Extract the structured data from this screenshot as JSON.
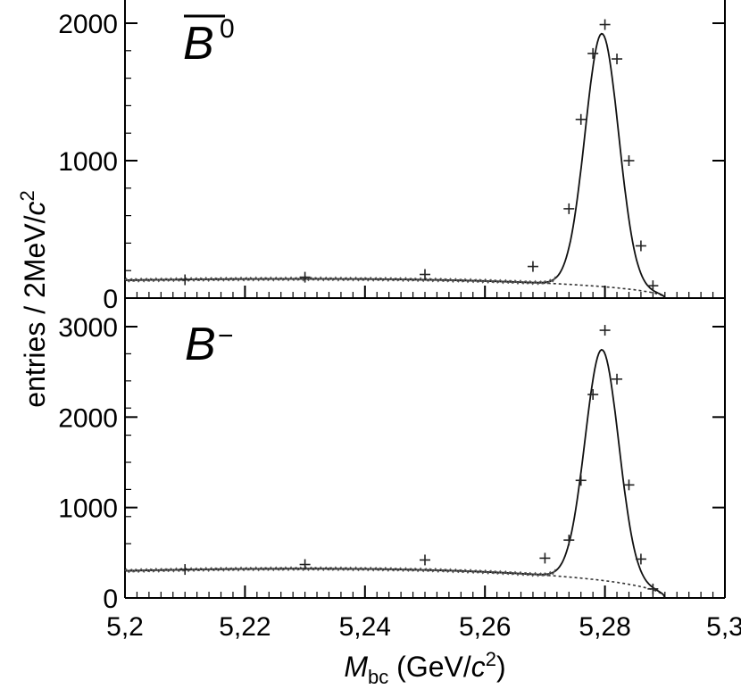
{
  "chart_data": [
    {
      "type": "line",
      "panel_label": "B",
      "panel_label_overline": true,
      "panel_label_sup": "0",
      "x_range": [
        5.2,
        5.3
      ],
      "ylim": [
        0,
        2000
      ],
      "ytick_labels": [
        "0",
        "1000",
        "2000"
      ],
      "ytick_values": [
        0,
        1000,
        2000
      ],
      "background": {
        "a": 130,
        "b": 185,
        "c": 40
      },
      "signal": {
        "peak": 5.2795,
        "height": 1840,
        "sigma": 0.0028
      },
      "points": [
        {
          "x": 5.21,
          "y": 133
        },
        {
          "x": 5.23,
          "y": 152
        },
        {
          "x": 5.25,
          "y": 172
        },
        {
          "x": 5.268,
          "y": 230
        },
        {
          "x": 5.274,
          "y": 650
        },
        {
          "x": 5.276,
          "y": 1300
        },
        {
          "x": 5.278,
          "y": 1780
        },
        {
          "x": 5.28,
          "y": 1990
        },
        {
          "x": 5.282,
          "y": 1740
        },
        {
          "x": 5.284,
          "y": 1000
        },
        {
          "x": 5.286,
          "y": 380
        },
        {
          "x": 5.288,
          "y": 90
        }
      ]
    },
    {
      "type": "line",
      "panel_label": "B",
      "panel_label_overline": false,
      "panel_label_sup": "−",
      "x_range": [
        5.2,
        5.3
      ],
      "ylim": [
        0,
        3000
      ],
      "ytick_labels": [
        "0",
        "1000",
        "2000",
        "3000"
      ],
      "ytick_values": [
        0,
        1000,
        2000,
        3000
      ],
      "background": {
        "a": 300,
        "b": 430,
        "c": 40
      },
      "signal": {
        "peak": 5.2795,
        "height": 2550,
        "sigma": 0.0028
      },
      "points": [
        {
          "x": 5.21,
          "y": 315
        },
        {
          "x": 5.23,
          "y": 370
        },
        {
          "x": 5.25,
          "y": 420
        },
        {
          "x": 5.27,
          "y": 440
        },
        {
          "x": 5.274,
          "y": 640
        },
        {
          "x": 5.276,
          "y": 1300
        },
        {
          "x": 5.278,
          "y": 2250
        },
        {
          "x": 5.28,
          "y": 2960
        },
        {
          "x": 5.282,
          "y": 2420
        },
        {
          "x": 5.284,
          "y": 1250
        },
        {
          "x": 5.286,
          "y": 430
        },
        {
          "x": 5.288,
          "y": 100
        }
      ]
    }
  ],
  "shared_x": {
    "ticks": [
      5.2,
      5.22,
      5.24,
      5.26,
      5.28,
      5.3
    ],
    "tick_labels": [
      "5,2",
      "5,22",
      "5,24",
      "5,26",
      "5,28",
      "5,3"
    ],
    "label_var": "M",
    "label_sub": "bc",
    "label_unit_open": " (GeV/",
    "label_c": "c",
    "label_sup": "2",
    "label_close": ")"
  },
  "shared_y": {
    "label_main": "entries / 2MeV/",
    "label_c": "c",
    "label_sup": "2"
  }
}
